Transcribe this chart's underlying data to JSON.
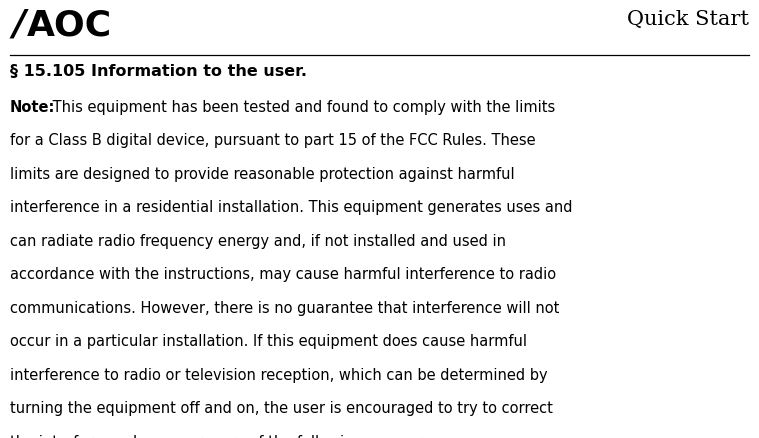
{
  "background_color": "#ffffff",
  "header_title": "Quick Start",
  "header_title_fontsize": 15,
  "section_heading": "§ 15.105 Information to the user.",
  "section_heading_fontsize": 11.5,
  "note_bold": "Note:",
  "body_fontsize": 10.5,
  "text_color": "#000000",
  "logo_fontsize": 26,
  "body_lines": [
    [
      "Note:",
      " This equipment has been tested and found to comply with the limits"
    ],
    [
      "",
      "for a Class B digital device, pursuant to part 15 of the FCC Rules. These"
    ],
    [
      "",
      "limits are designed to provide reasonable protection against harmful"
    ],
    [
      "",
      "interference in a residential installation. This equipment generates uses and"
    ],
    [
      "",
      "can radiate radio frequency energy and, if not installed and used in"
    ],
    [
      "",
      "accordance with the instructions, may cause harmful interference to radio"
    ],
    [
      "",
      "communications. However, there is no guarantee that interference will not"
    ],
    [
      "",
      "occur in a particular installation. If this equipment does cause harmful"
    ],
    [
      "",
      "interference to radio or television reception, which can be determined by"
    ],
    [
      "",
      "turning the equipment off and on, the user is encouraged to try to correct"
    ],
    [
      "",
      "the interference by one or more of the following measures:"
    ]
  ]
}
